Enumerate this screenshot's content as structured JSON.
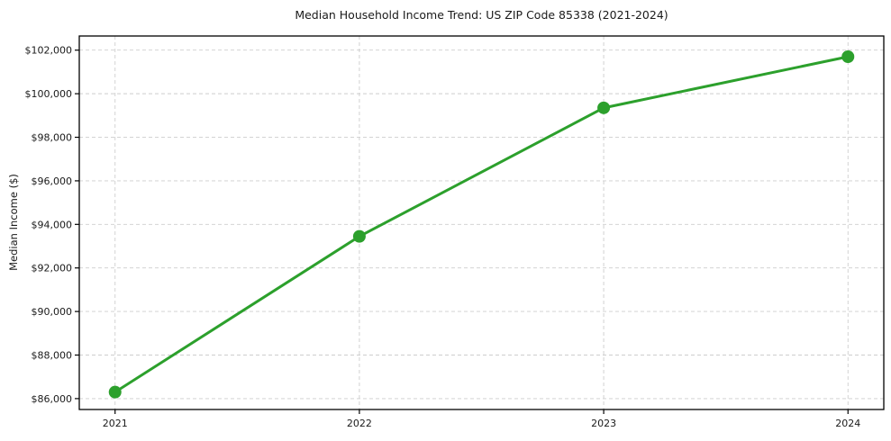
{
  "chart_data": {
    "type": "line",
    "title": "Median Household Income Trend: US ZIP Code 85338 (2021-2024)",
    "xlabel": "",
    "ylabel": "Median Income ($)",
    "categories": [
      "2021",
      "2022",
      "2023",
      "2024"
    ],
    "values": [
      86300,
      93450,
      99350,
      101700
    ],
    "y_ticks": [
      {
        "value": 86000,
        "label": "$86,000"
      },
      {
        "value": 88000,
        "label": "$88,000"
      },
      {
        "value": 90000,
        "label": "$90,000"
      },
      {
        "value": 92000,
        "label": "$92,000"
      },
      {
        "value": 94000,
        "label": "$94,000"
      },
      {
        "value": 96000,
        "label": "$96,000"
      },
      {
        "value": 98000,
        "label": "$98,000"
      },
      {
        "value": 100000,
        "label": "$100,000"
      },
      {
        "value": 102000,
        "label": "$102,000"
      }
    ],
    "ylim": [
      85500,
      102650
    ],
    "grid": true,
    "legend": false,
    "colors": {
      "line": "#2ca02c",
      "marker": "#2ca02c",
      "grid": "#cdcdcd",
      "spine": "#000000",
      "text": "#1a1a1a"
    }
  }
}
